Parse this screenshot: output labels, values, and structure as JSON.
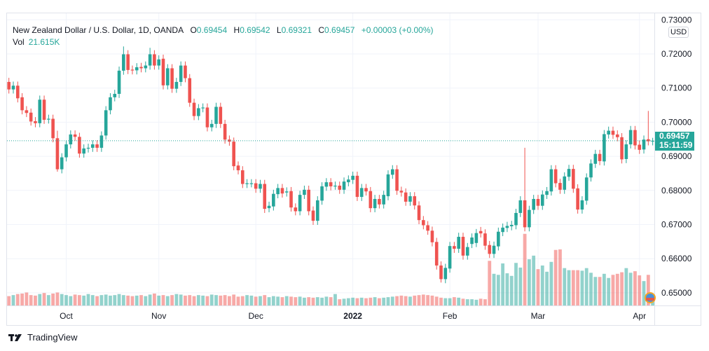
{
  "legend": {
    "symbol": "New Zealand Dollar / U.S. Dollar, 1D, OANDA",
    "open_label": "O",
    "open": "0.69454",
    "high_label": "H",
    "high": "0.69542",
    "low_label": "L",
    "low": "0.69321",
    "close_label": "C",
    "close": "0.69457",
    "change": "+0.00003 (+0.00%)",
    "vol_label": "Vol",
    "vol": "21.615K"
  },
  "price_axis": {
    "currency": "USD",
    "last_price": "0.69457",
    "countdown": "15:11:59"
  },
  "footer": {
    "brand": "TradingView"
  },
  "colors": {
    "up": "#26a69a",
    "down": "#ef5350",
    "grid": "#f0f3fa",
    "text": "#131722"
  },
  "chart_data": {
    "type": "candlestick",
    "title": "New Zealand Dollar / U.S. Dollar, 1D, OANDA",
    "ylim": [
      0.645,
      0.73
    ],
    "y_ticks": [
      "0.73000",
      "0.72000",
      "0.71000",
      "0.70000",
      "0.69000",
      "0.68000",
      "0.67000",
      "0.66000",
      "0.65000"
    ],
    "y_tick_values": [
      0.73,
      0.72,
      0.71,
      0.7,
      0.69,
      0.68,
      0.67,
      0.66,
      0.65
    ],
    "x_ticks": [
      {
        "label": "Oct",
        "index": 13
      },
      {
        "label": "Nov",
        "index": 34
      },
      {
        "label": "Dec",
        "index": 56
      },
      {
        "label": "2022",
        "index": 78
      },
      {
        "label": "Feb",
        "index": 100
      },
      {
        "label": "Mar",
        "index": 120
      },
      {
        "label": "Apr",
        "index": 143
      }
    ],
    "candles_oc": [
      [
        0.7118,
        0.7096
      ],
      [
        0.7096,
        0.7107
      ],
      [
        0.7107,
        0.707
      ],
      [
        0.7073,
        0.7035
      ],
      [
        0.7035,
        0.7027
      ],
      [
        0.7028,
        0.7002
      ],
      [
        0.7003,
        0.6997
      ],
      [
        0.6997,
        0.7066
      ],
      [
        0.7066,
        0.7007
      ],
      [
        0.7008,
        0.701
      ],
      [
        0.701,
        0.6953
      ],
      [
        0.6953,
        0.6862
      ],
      [
        0.6862,
        0.6897
      ],
      [
        0.6897,
        0.6935
      ],
      [
        0.6935,
        0.6964
      ],
      [
        0.6964,
        0.6957
      ],
      [
        0.6957,
        0.6908
      ],
      [
        0.6908,
        0.6923
      ],
      [
        0.6923,
        0.6925
      ],
      [
        0.6925,
        0.6935
      ],
      [
        0.6935,
        0.6925
      ],
      [
        0.6925,
        0.6961
      ],
      [
        0.6961,
        0.7035
      ],
      [
        0.7035,
        0.7073
      ],
      [
        0.7073,
        0.7083
      ],
      [
        0.7083,
        0.7151
      ],
      [
        0.7151,
        0.7199
      ],
      [
        0.7199,
        0.7153
      ],
      [
        0.7154,
        0.7152
      ],
      [
        0.7152,
        0.7161
      ],
      [
        0.7162,
        0.7158
      ],
      [
        0.7158,
        0.7166
      ],
      [
        0.7166,
        0.7199
      ],
      [
        0.7199,
        0.7166
      ],
      [
        0.7166,
        0.7184
      ],
      [
        0.7186,
        0.7108
      ],
      [
        0.7108,
        0.7158
      ],
      [
        0.7158,
        0.7098
      ],
      [
        0.7098,
        0.7118
      ],
      [
        0.7118,
        0.7166
      ],
      [
        0.7166,
        0.7129
      ],
      [
        0.7129,
        0.7057
      ],
      [
        0.7057,
        0.7018
      ],
      [
        0.7018,
        0.7041
      ],
      [
        0.7041,
        0.7043
      ],
      [
        0.7043,
        0.6985
      ],
      [
        0.6985,
        0.6995
      ],
      [
        0.6995,
        0.7045
      ],
      [
        0.7045,
        0.6995
      ],
      [
        0.6995,
        0.6949
      ],
      [
        0.6949,
        0.6943
      ],
      [
        0.6943,
        0.6871
      ],
      [
        0.6873,
        0.6859
      ],
      [
        0.6859,
        0.6819
      ],
      [
        0.6819,
        0.6821
      ],
      [
        0.6821,
        0.6821
      ],
      [
        0.6821,
        0.6805
      ],
      [
        0.6805,
        0.6819
      ],
      [
        0.6819,
        0.6746
      ],
      [
        0.6748,
        0.6755
      ],
      [
        0.6753,
        0.679
      ],
      [
        0.6789,
        0.6807
      ],
      [
        0.6807,
        0.6791
      ],
      [
        0.6794,
        0.6797
      ],
      [
        0.6798,
        0.675
      ],
      [
        0.675,
        0.6739
      ],
      [
        0.6739,
        0.6787
      ],
      [
        0.6787,
        0.6802
      ],
      [
        0.6802,
        0.6739
      ],
      [
        0.6741,
        0.6711
      ],
      [
        0.6711,
        0.6771
      ],
      [
        0.677,
        0.6812
      ],
      [
        0.6811,
        0.6824
      ],
      [
        0.6824,
        0.6812
      ],
      [
        0.6814,
        0.6814
      ],
      [
        0.6814,
        0.6802
      ],
      [
        0.6802,
        0.6826
      ],
      [
        0.6824,
        0.6832
      ],
      [
        0.6831,
        0.6843
      ],
      [
        0.6843,
        0.6781
      ],
      [
        0.6781,
        0.6807
      ],
      [
        0.6807,
        0.6797
      ],
      [
        0.6798,
        0.6748
      ],
      [
        0.6748,
        0.6775
      ],
      [
        0.6775,
        0.6759
      ],
      [
        0.6759,
        0.6787
      ],
      [
        0.6783,
        0.6847
      ],
      [
        0.6846,
        0.6862
      ],
      [
        0.6862,
        0.6799
      ],
      [
        0.6799,
        0.6794
      ],
      [
        0.6794,
        0.6767
      ],
      [
        0.6767,
        0.6783
      ],
      [
        0.6783,
        0.6756
      ],
      [
        0.6756,
        0.6713
      ],
      [
        0.6713,
        0.6698
      ],
      [
        0.6698,
        0.6682
      ],
      [
        0.6682,
        0.6648
      ],
      [
        0.6649,
        0.658
      ],
      [
        0.658,
        0.654
      ],
      [
        0.654,
        0.6573
      ],
      [
        0.6571,
        0.6637
      ],
      [
        0.6637,
        0.6629
      ],
      [
        0.6629,
        0.6664
      ],
      [
        0.6664,
        0.6609
      ],
      [
        0.6609,
        0.6634
      ],
      [
        0.6643,
        0.6662
      ],
      [
        0.6646,
        0.6675
      ],
      [
        0.6681,
        0.6674
      ],
      [
        0.6674,
        0.6638
      ],
      [
        0.664,
        0.6614
      ],
      [
        0.6614,
        0.6638
      ],
      [
        0.6636,
        0.6679
      ],
      [
        0.6678,
        0.6691
      ],
      [
        0.669,
        0.6696
      ],
      [
        0.6695,
        0.6699
      ],
      [
        0.6698,
        0.6734
      ],
      [
        0.6734,
        0.6771
      ],
      [
        0.6771,
        0.6692
      ],
      [
        0.6692,
        0.6743
      ],
      [
        0.6743,
        0.6775
      ],
      [
        0.6775,
        0.6755
      ],
      [
        0.6755,
        0.6788
      ],
      [
        0.6787,
        0.6798
      ],
      [
        0.6797,
        0.6862
      ],
      [
        0.6862,
        0.6821
      ],
      [
        0.6822,
        0.6802
      ],
      [
        0.6802,
        0.6841
      ],
      [
        0.684,
        0.6863
      ],
      [
        0.6863,
        0.6805
      ],
      [
        0.6806,
        0.6744
      ],
      [
        0.6744,
        0.6771
      ],
      [
        0.677,
        0.6838
      ],
      [
        0.6838,
        0.6879
      ],
      [
        0.6878,
        0.6907
      ],
      [
        0.6907,
        0.6886
      ],
      [
        0.6885,
        0.6965
      ],
      [
        0.6964,
        0.6975
      ],
      [
        0.6975,
        0.6963
      ],
      [
        0.6964,
        0.6956
      ],
      [
        0.6956,
        0.6891
      ],
      [
        0.6892,
        0.6935
      ],
      [
        0.6935,
        0.6977
      ],
      [
        0.6977,
        0.6932
      ],
      [
        0.6934,
        0.6919
      ],
      [
        0.692,
        0.6949
      ],
      [
        0.695,
        0.6944
      ],
      [
        0.69454,
        0.69457
      ]
    ],
    "default_wick": 0.0012,
    "high_overrides": {
      "117": 0.6925,
      "145": 0.7033,
      "146": 0.69542,
      "11": 0.6975,
      "26": 0.7222,
      "32": 0.7218
    },
    "low_overrides": {
      "146": 0.69321,
      "98": 0.653,
      "11": 0.6855
    },
    "volume_k": [
      18,
      20,
      22,
      23,
      25,
      20,
      19,
      22,
      24,
      20,
      23,
      25,
      22,
      20,
      18,
      21,
      20,
      19,
      22,
      20,
      18,
      20,
      21,
      19,
      20,
      22,
      20,
      19,
      18,
      19,
      20,
      18,
      21,
      23,
      19,
      20,
      18,
      20,
      22,
      21,
      19,
      20,
      18,
      20,
      19,
      18,
      21,
      20,
      19,
      20,
      18,
      21,
      17,
      18,
      20,
      19,
      17,
      18,
      20,
      16,
      18,
      17,
      16,
      18,
      17,
      16,
      17,
      15,
      16,
      15,
      16,
      15,
      17,
      16,
      22,
      12,
      13,
      14,
      15,
      14,
      15,
      14,
      15,
      16,
      14,
      15,
      16,
      17,
      18,
      19,
      18,
      17,
      19,
      20,
      21,
      20,
      19,
      17,
      15,
      14,
      14,
      16,
      15,
      13,
      12,
      12,
      11,
      13,
      12,
      86,
      61,
      59,
      81,
      62,
      57,
      82,
      73,
      138,
      89,
      96,
      70,
      77,
      65,
      84,
      107,
      108,
      72,
      68,
      68,
      68,
      67,
      72,
      63,
      55,
      55,
      61,
      53,
      59,
      61,
      64,
      72,
      63,
      66,
      58,
      47,
      59,
      21.615
    ]
  }
}
